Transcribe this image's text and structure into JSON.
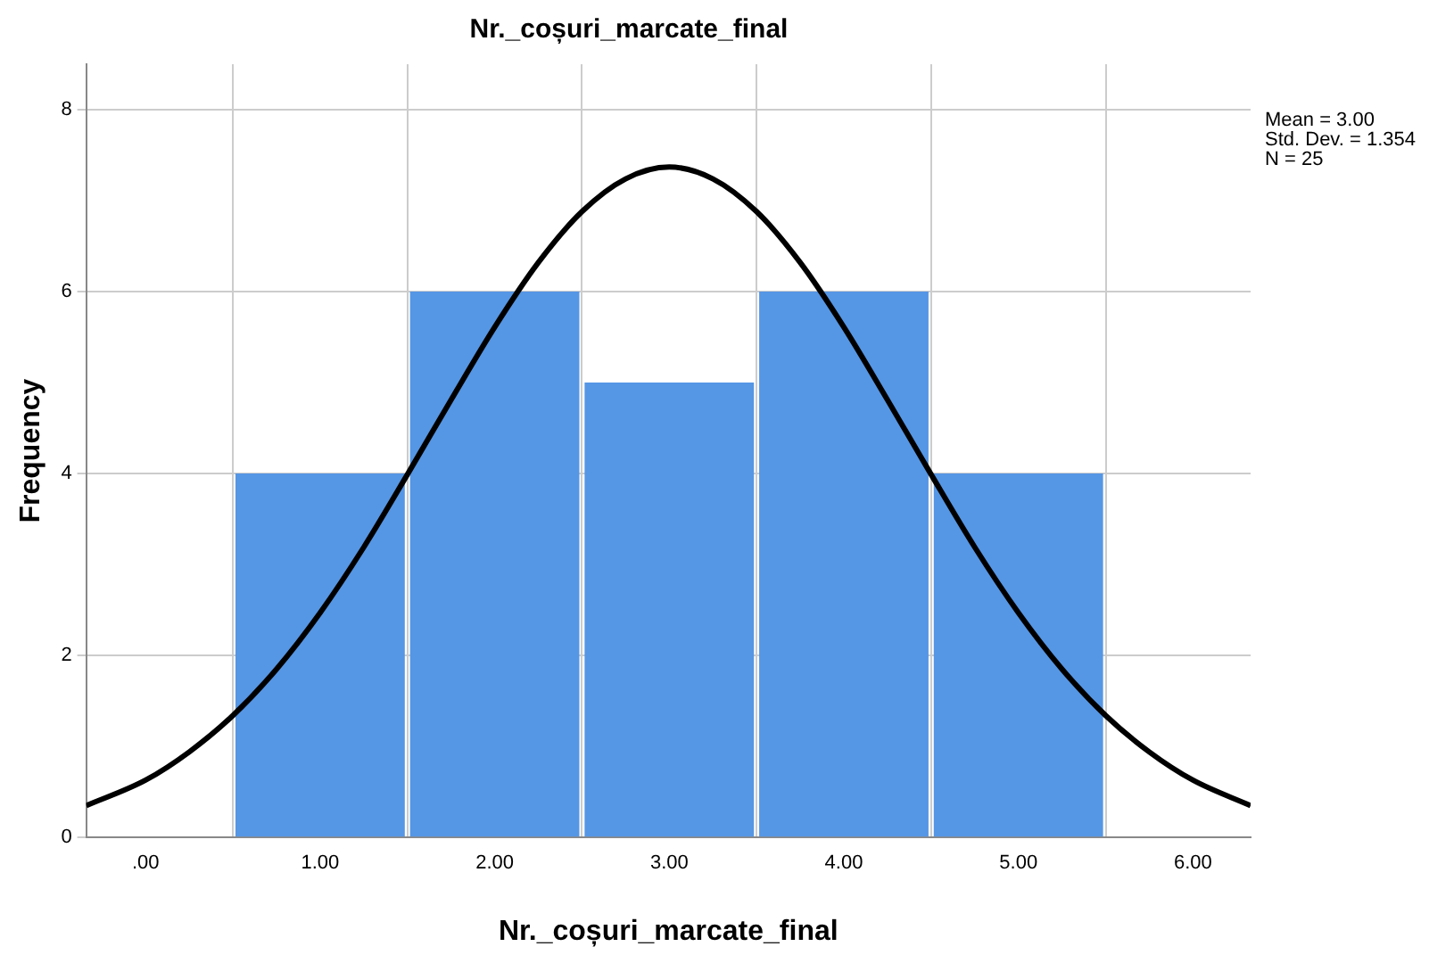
{
  "chart_data": {
    "type": "histogram",
    "title": "Nr._coșuri_marcate_final",
    "xlabel": "Nr._coșuri_marcate_final",
    "ylabel": "Frequency",
    "bins": [
      0.5,
      1.5,
      2.5,
      3.5,
      4.5,
      5.5
    ],
    "values": [
      4,
      6,
      5,
      6,
      4
    ],
    "color": "#5596e5",
    "xlim": [
      -0.34,
      6.33
    ],
    "xticks": [
      {
        "value": 0,
        "label": ".00"
      },
      {
        "value": 1,
        "label": "1.00"
      },
      {
        "value": 2,
        "label": "2.00"
      },
      {
        "value": 3,
        "label": "3.00"
      },
      {
        "value": 4,
        "label": "4.00"
      },
      {
        "value": 5,
        "label": "5.00"
      },
      {
        "value": 6,
        "label": "6.00"
      }
    ],
    "ylim": [
      0,
      8.5
    ],
    "yticks": [
      0,
      2,
      4,
      6,
      8
    ],
    "grid": true,
    "series": [
      {
        "type": "line",
        "color": "#000000",
        "x": [
          -0.34,
          0,
          0.25,
          0.5,
          0.75,
          1,
          1.25,
          1.5,
          1.75,
          2,
          2.25,
          2.5,
          2.75,
          3,
          3.25,
          3.5,
          3.75,
          4,
          4.25,
          4.5,
          4.75,
          5,
          5.25,
          5.5,
          5.75,
          6,
          6.33
        ],
        "values": [
          0.35,
          0.63,
          0.94,
          1.34,
          1.85,
          2.47,
          3.19,
          3.99,
          4.81,
          5.61,
          6.32,
          6.88,
          7.24,
          7.37,
          7.24,
          6.88,
          6.32,
          5.61,
          4.81,
          3.99,
          3.19,
          2.47,
          1.85,
          1.34,
          0.94,
          0.63,
          0.35
        ]
      }
    ],
    "annotations": [
      "Mean = 3.00",
      "Std. Dev. = 1.354",
      "N = 25"
    ]
  }
}
